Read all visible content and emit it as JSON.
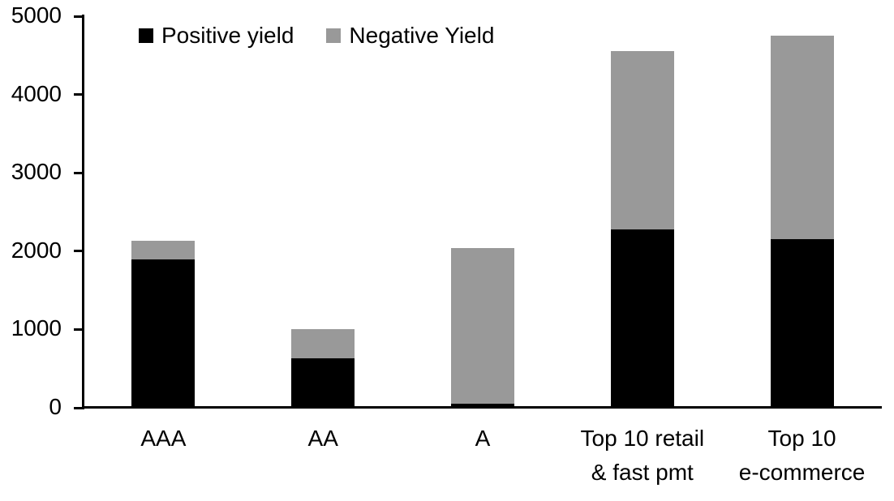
{
  "chart_data": {
    "type": "bar",
    "subtype": "stacked",
    "title": "",
    "xlabel": "",
    "ylabel": "",
    "categories": [
      "AAA",
      "AA",
      "A",
      "Top 10 retail\n& fast pmt",
      "Top 10\ne-commerce"
    ],
    "series": [
      {
        "name": "Positive yield",
        "color": "#000000",
        "values": [
          1890,
          630,
          50,
          2280,
          2150
        ]
      },
      {
        "name": "Negative Yield",
        "color": "#999999",
        "values": [
          240,
          375,
          1985,
          2270,
          2600
        ]
      }
    ],
    "totals": [
      2130,
      1005,
      2035,
      4550,
      4750
    ],
    "ylim": [
      0,
      5000
    ],
    "yticks": [
      0,
      1000,
      2000,
      3000,
      4000,
      5000
    ],
    "grid": "off",
    "legend_position": "top-left-inside",
    "axis_color": "#000000",
    "background_color": "#ffffff"
  }
}
